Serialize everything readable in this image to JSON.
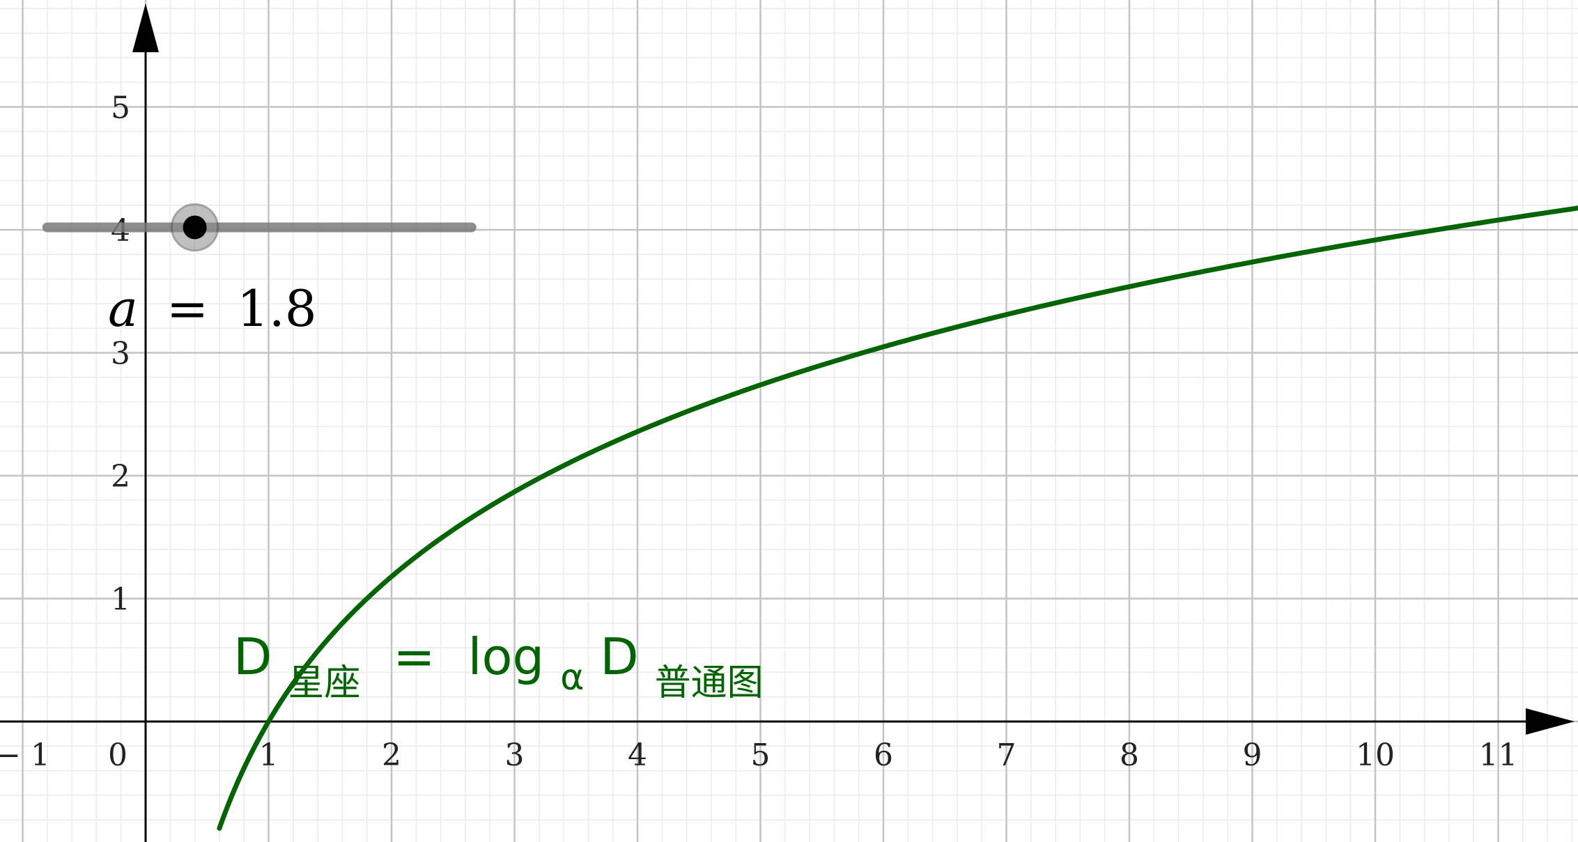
{
  "chart_data": {
    "type": "line",
    "title": "",
    "xlabel": "",
    "ylabel": "",
    "xlim": [
      -1.2,
      11.65
    ],
    "ylim": [
      -0.97,
      5.9
    ],
    "x_major_step": 1,
    "y_major_step": 1,
    "minor_divisions": 5,
    "grid": true,
    "x_ticks": [
      {
        "value": -1,
        "label": "− 1"
      },
      {
        "value": 1,
        "label": "1"
      },
      {
        "value": 2,
        "label": "2"
      },
      {
        "value": 3,
        "label": "3"
      },
      {
        "value": 4,
        "label": "4"
      },
      {
        "value": 5,
        "label": "5"
      },
      {
        "value": 6,
        "label": "6"
      },
      {
        "value": 7,
        "label": "7"
      },
      {
        "value": 8,
        "label": "8"
      },
      {
        "value": 9,
        "label": "9"
      },
      {
        "value": 10,
        "label": "10"
      },
      {
        "value": 11,
        "label": "11"
      }
    ],
    "origin_label": "0",
    "y_ticks": [
      {
        "value": 1,
        "label": "1"
      },
      {
        "value": 2,
        "label": "2"
      },
      {
        "value": 3,
        "label": "3"
      },
      {
        "value": 4,
        "label": "4"
      },
      {
        "value": 5,
        "label": "5"
      }
    ],
    "series": [
      {
        "function": "log_a(x)",
        "base": 1.8,
        "x_domain": [
          0.6,
          11.65
        ],
        "color": "#006400"
      }
    ],
    "slider": {
      "name": "a",
      "value": 1.8,
      "value_label": "1.8",
      "track_y": 4.02,
      "track_x": [
        -0.8,
        2.65
      ],
      "handle_x": 0.4
    },
    "curve_label": {
      "D": "D",
      "sub1": "星座",
      "eq": "=",
      "log": "log",
      "base_sub": "α",
      "D2": "D",
      "sub2": "普通图"
    }
  },
  "colors": {
    "grid_major": "#c4c4c4",
    "grid_minor": "#ebebeb",
    "axis": "#000000",
    "curve": "#006400",
    "slider_track": "#7a7a7a",
    "slider_halo": "#8c8c8c",
    "slider_point": "#000000"
  }
}
